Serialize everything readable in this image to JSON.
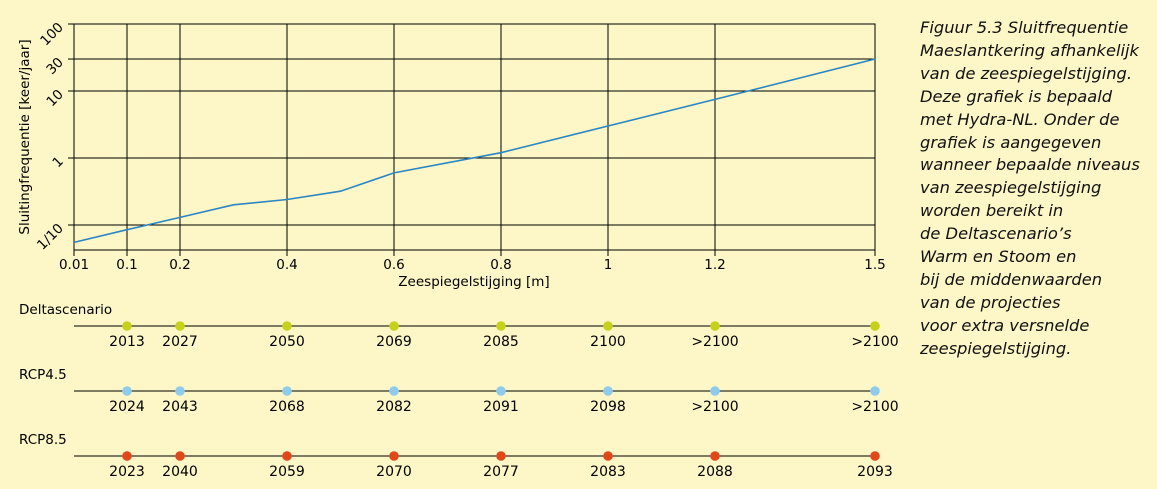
{
  "chart_data": {
    "type": "line",
    "xlabel": "Zeespiegelstijging [m]",
    "ylabel": "Sluitingfrequentie [keer/jaar]",
    "x_ticks": [
      "0.01",
      "0.1",
      "0.2",
      "0.4",
      "0.6",
      "0.8",
      "1",
      "1.2",
      "1.5"
    ],
    "y_ticks": [
      "1/10",
      "1",
      "10",
      "30",
      "100"
    ],
    "y_scale": "log",
    "ylim": [
      0.05,
      100
    ],
    "xlim": [
      0.01,
      1.5
    ],
    "grid": true,
    "line_color": "#2a86c5",
    "series": [
      {
        "x": [
          0.01,
          0.1,
          0.2,
          0.3,
          0.4,
          0.5,
          0.6,
          0.8,
          1.0,
          1.2,
          1.5
        ],
        "y": [
          0.055,
          0.085,
          0.13,
          0.2,
          0.24,
          0.32,
          0.6,
          1.2,
          3.0,
          7.5,
          30
        ]
      }
    ]
  },
  "scenarios": [
    {
      "label": "Deltascenario",
      "color": "#c5d11a",
      "years": [
        "2013",
        "2027",
        "2050",
        "2069",
        "2085",
        "2100",
        ">2100",
        ">2100"
      ]
    },
    {
      "label": "RCP4.5",
      "color": "#8fcbec",
      "years": [
        "2024",
        "2043",
        "2068",
        "2082",
        "2091",
        "2098",
        ">2100",
        ">2100"
      ]
    },
    {
      "label": "RCP8.5",
      "color": "#e0481a",
      "years": [
        "2023",
        "2040",
        "2059",
        "2070",
        "2077",
        "2083",
        "2088",
        "2093"
      ]
    }
  ],
  "caption": {
    "lines": [
      "Figuur 5.3  Sluitfrequentie",
      "Maeslantkering afhankelijk",
      "van de zeespiegelstijging.",
      "Deze grafiek is bepaald",
      "met Hydra-NL. Onder de",
      "grafiek is aangegeven",
      "wanneer bepaalde niveaus",
      "van zeespiegelstijging",
      "worden bereikt in",
      "de Deltascenario’s",
      "Warm en Stoom en",
      "bij de middenwaarden",
      "van de projecties",
      "voor extra versnelde",
      "zeespiegelstijging."
    ]
  }
}
